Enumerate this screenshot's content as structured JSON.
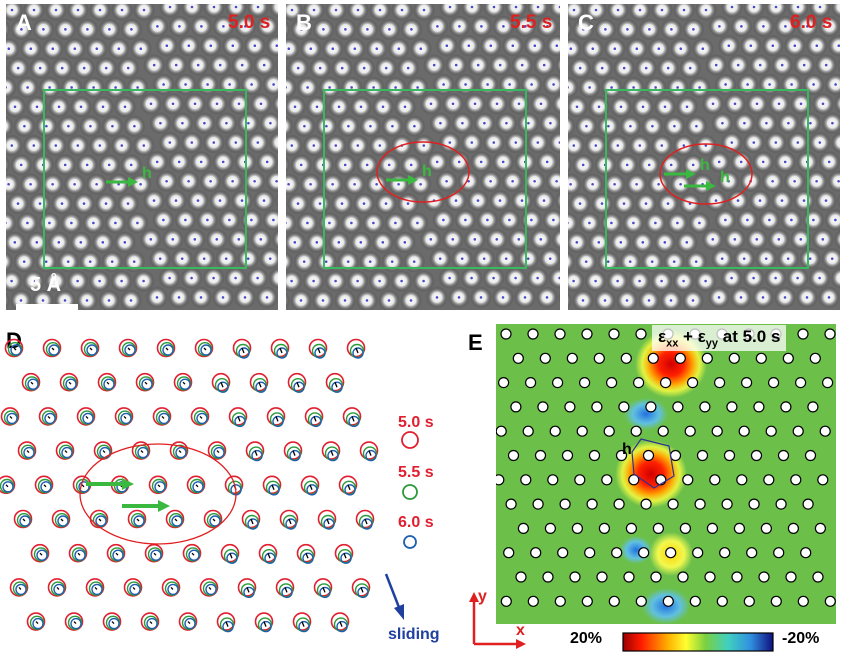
{
  "panels": {
    "a": {
      "label": "A",
      "time": "5.0 s"
    },
    "b": {
      "label": "B",
      "time": "5.5 s"
    },
    "c": {
      "label": "C",
      "time": "6.0 s"
    },
    "d": {
      "label": "D"
    },
    "e": {
      "label": "E"
    }
  },
  "scale_bar": "5 Å",
  "defect_marker": "h",
  "legend": {
    "t1": "5.0 s",
    "t2": "5.5 s",
    "t3": "6.0 s"
  },
  "sliding_label": "sliding",
  "strain_title": {
    "eps": "ε",
    "xx": "xx",
    "plus": " + ε",
    "yy": "yy",
    "rest": " at 5.0 s"
  },
  "axes": {
    "x": "x",
    "y": "y"
  },
  "colorbar": {
    "min_label": "20%",
    "max_label": "-20%"
  },
  "colors": {
    "time1": "#e02030",
    "time2": "#2a9a3a",
    "time3": "#1f5fb0",
    "box": "#3ab860",
    "arrow": "#3ab840"
  }
}
